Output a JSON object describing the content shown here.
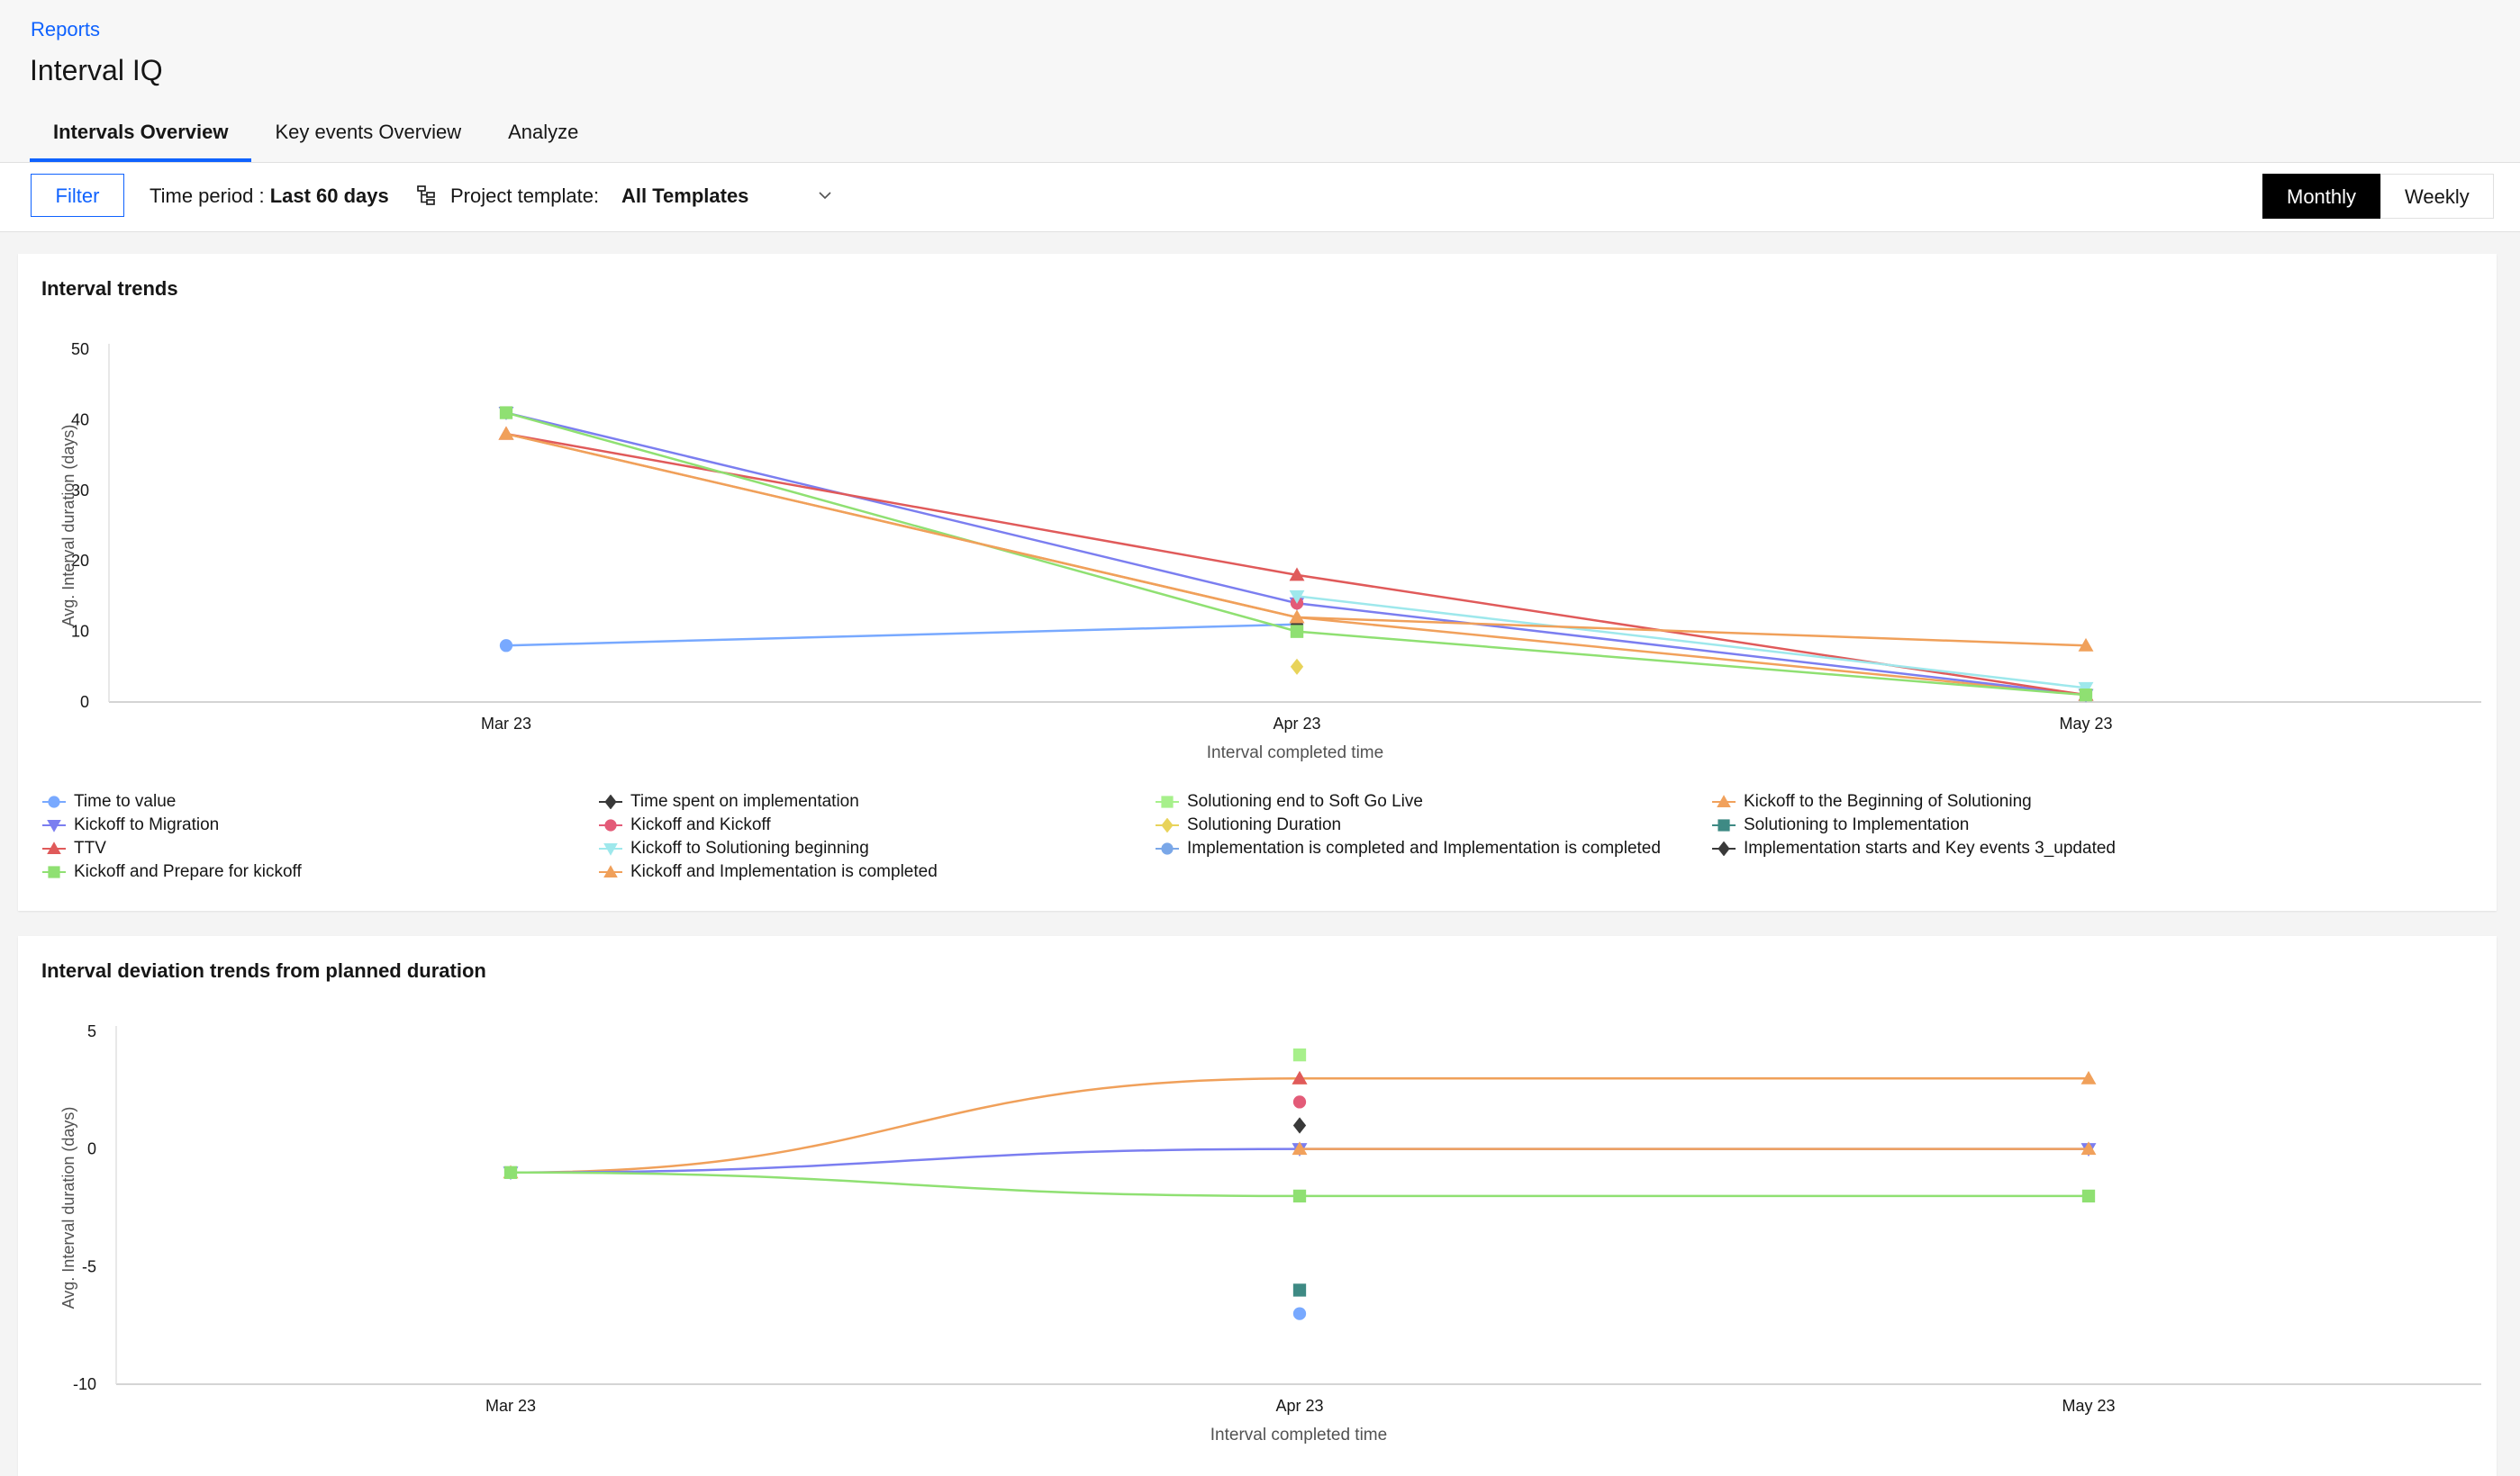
{
  "header": {
    "breadcrumb": "Reports",
    "title": "Interval IQ",
    "tabs": [
      {
        "label": "Intervals Overview",
        "active": true
      },
      {
        "label": "Key events Overview",
        "active": false
      },
      {
        "label": "Analyze",
        "active": false
      }
    ]
  },
  "toolbar": {
    "filter_label": "Filter",
    "time_period_label": "Time period : ",
    "time_period_value": "Last 60 days",
    "project_template_label": "Project template:",
    "project_template_value": "All Templates",
    "granularity": [
      "Monthly",
      "Weekly"
    ],
    "granularity_selected": "Monthly"
  },
  "chart_data": [
    {
      "type": "line",
      "title": "Interval trends",
      "xlabel": "Interval completed time",
      "ylabel": "Avg. Interval duration (days)",
      "categories": [
        "Mar 23",
        "Apr 23",
        "May 23"
      ],
      "ylim": [
        0,
        50
      ],
      "yticks": [
        0,
        10,
        20,
        30,
        40,
        50
      ],
      "grid": false,
      "legend_position": "bottom",
      "series": [
        {
          "name": "Time to value",
          "color": "#78a9ff",
          "marker": "circle",
          "values": [
            8,
            11,
            null
          ]
        },
        {
          "name": "Time spent on implementation",
          "color": "#393939",
          "marker": "diamond",
          "values": [
            null,
            11,
            null
          ]
        },
        {
          "name": "Solutioning end to Soft Go Live",
          "color": "#a7f08b",
          "marker": "square",
          "values": [
            null,
            10,
            null
          ]
        },
        {
          "name": "Kickoff to the Beginning of Solutioning",
          "color": "#f1a15c",
          "marker": "triangle",
          "values": [
            38,
            12,
            1
          ]
        },
        {
          "name": "Kickoff to Migration",
          "color": "#7b7ef0",
          "marker": "triangle-down",
          "values": [
            41,
            14,
            1
          ]
        },
        {
          "name": "Kickoff and Kickoff",
          "color": "#e35b78",
          "marker": "circle",
          "values": [
            null,
            14,
            null
          ]
        },
        {
          "name": "Solutioning Duration",
          "color": "#e8d35a",
          "marker": "diamond",
          "values": [
            null,
            5,
            null
          ]
        },
        {
          "name": "Solutioning to Implementation",
          "color": "#3e8a84",
          "marker": "square",
          "values": [
            null,
            null,
            null
          ]
        },
        {
          "name": "TTV",
          "color": "#e05a5a",
          "marker": "triangle",
          "values": [
            38,
            18,
            1
          ]
        },
        {
          "name": "Kickoff to Solutioning beginning",
          "color": "#9ee8ec",
          "marker": "triangle-down",
          "values": [
            null,
            15,
            2
          ]
        },
        {
          "name": "Implementation is completed and Implementation is completed",
          "color": "#7aa7e8",
          "marker": "circle",
          "values": [
            null,
            null,
            null
          ]
        },
        {
          "name": "Implementation starts and Key events 3_updated",
          "color": "#393939",
          "marker": "diamond",
          "values": [
            null,
            null,
            null
          ]
        },
        {
          "name": "Kickoff and Prepare for kickoff",
          "color": "#8fe072",
          "marker": "square",
          "values": [
            41,
            10,
            1
          ]
        },
        {
          "name": "Kickoff and Implementation is completed",
          "color": "#f0a05a",
          "marker": "triangle",
          "values": [
            38,
            12,
            8
          ]
        }
      ]
    },
    {
      "type": "line",
      "title": "Interval deviation trends from planned duration",
      "xlabel": "Interval completed time",
      "ylabel": "Avg. Interval duration (days)",
      "categories": [
        "Mar 23",
        "Apr 23",
        "May 23"
      ],
      "ylim": [
        -10,
        5
      ],
      "yticks": [
        -10,
        -5,
        0,
        5
      ],
      "grid": false,
      "series": [
        {
          "color": "#f0a05a",
          "marker": "triangle",
          "values": [
            -1,
            3,
            3
          ]
        },
        {
          "color": "#7b7ef0",
          "marker": "triangle-down",
          "values": [
            -1,
            0,
            0
          ]
        },
        {
          "color": "#f1a15c",
          "marker": "triangle",
          "values": [
            null,
            0,
            0
          ]
        },
        {
          "color": "#8fe072",
          "marker": "square",
          "values": [
            -1,
            -2,
            -2
          ]
        },
        {
          "color": "#a7f08b",
          "marker": "square",
          "values": [
            null,
            4,
            null
          ]
        },
        {
          "color": "#e05a5a",
          "marker": "triangle",
          "values": [
            null,
            3,
            null
          ]
        },
        {
          "color": "#e35b78",
          "marker": "circle",
          "values": [
            null,
            2,
            null
          ]
        },
        {
          "color": "#393939",
          "marker": "diamond",
          "values": [
            null,
            1,
            null
          ]
        },
        {
          "color": "#3e8a84",
          "marker": "square",
          "values": [
            null,
            -6,
            null
          ]
        },
        {
          "color": "#78a9ff",
          "marker": "circle",
          "values": [
            null,
            -7,
            null
          ]
        }
      ]
    }
  ]
}
